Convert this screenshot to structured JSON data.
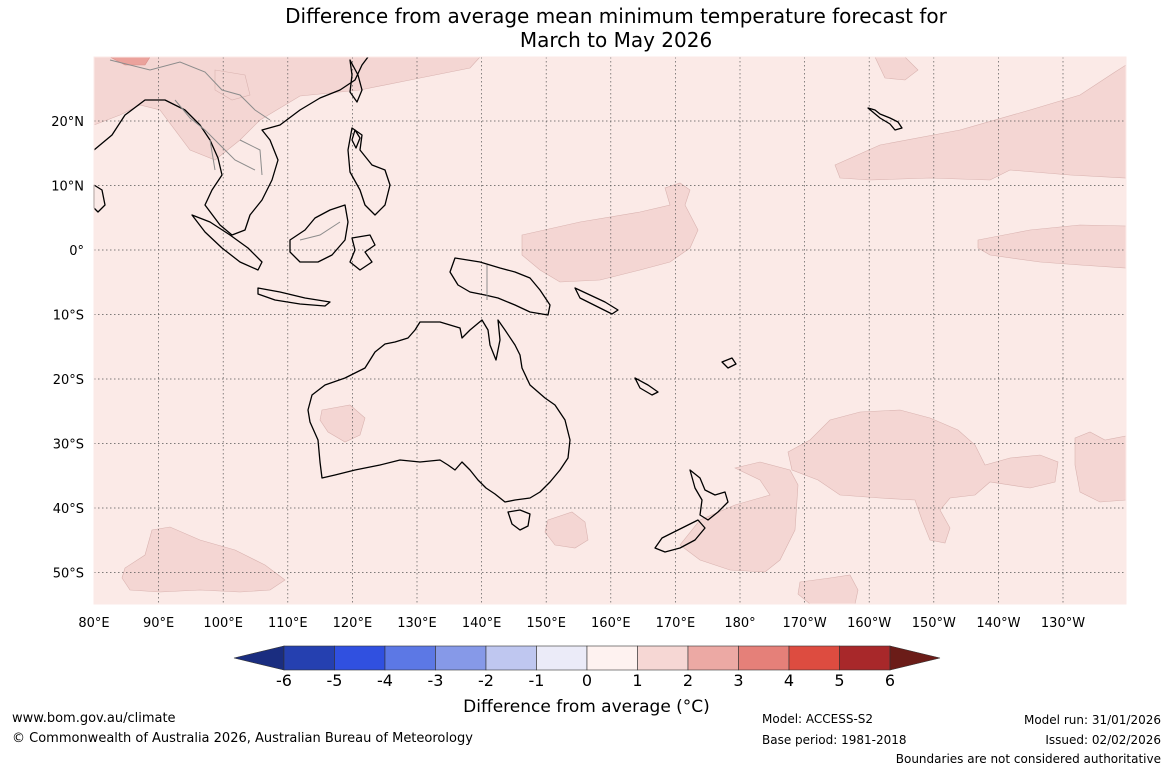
{
  "title": {
    "line1": "Difference from average mean minimum temperature forecast for",
    "line2": "March to May 2026"
  },
  "map": {
    "lon_labels": [
      "80°E",
      "90°E",
      "100°E",
      "110°E",
      "120°E",
      "130°E",
      "140°E",
      "150°E",
      "160°E",
      "170°E",
      "180°",
      "170°W",
      "160°W",
      "150°W",
      "140°W",
      "130°W"
    ],
    "lat_labels": [
      "20°N",
      "10°N",
      "0°",
      "10°S",
      "20°S",
      "30°S",
      "40°S",
      "50°S"
    ],
    "background_color": "#fbeae7",
    "anomaly_1_2_color": "#f4d6d3",
    "anomaly_2_3_color": "#eba29c",
    "coastline_color": "#000000"
  },
  "colorbar": {
    "labels": [
      "-6",
      "-5",
      "-4",
      "-3",
      "-2",
      "-1",
      "0",
      "1",
      "2",
      "3",
      "4",
      "5",
      "6"
    ],
    "colors": [
      "#1a2d80",
      "#2540b0",
      "#3050e0",
      "#5c78e5",
      "#8699e8",
      "#bfc7f0",
      "#ebebf8",
      "#fef2f0",
      "#f6d7d4",
      "#eca9a4",
      "#e58079",
      "#dd4c40",
      "#a8282a",
      "#6b1c18"
    ],
    "label": "Difference from average (°C)"
  },
  "footer": {
    "website": "www.bom.gov.au/climate",
    "copyright": "© Commonwealth of Australia 2026, Australian Bureau of Meteorology",
    "model": "Model: ACCESS-S2",
    "base_period": "Base period: 1981-2018",
    "model_run": "Model run: 31/01/2026",
    "issued": "Issued: 02/02/2026",
    "disclaimer": "Boundaries are not considered authoritative"
  }
}
